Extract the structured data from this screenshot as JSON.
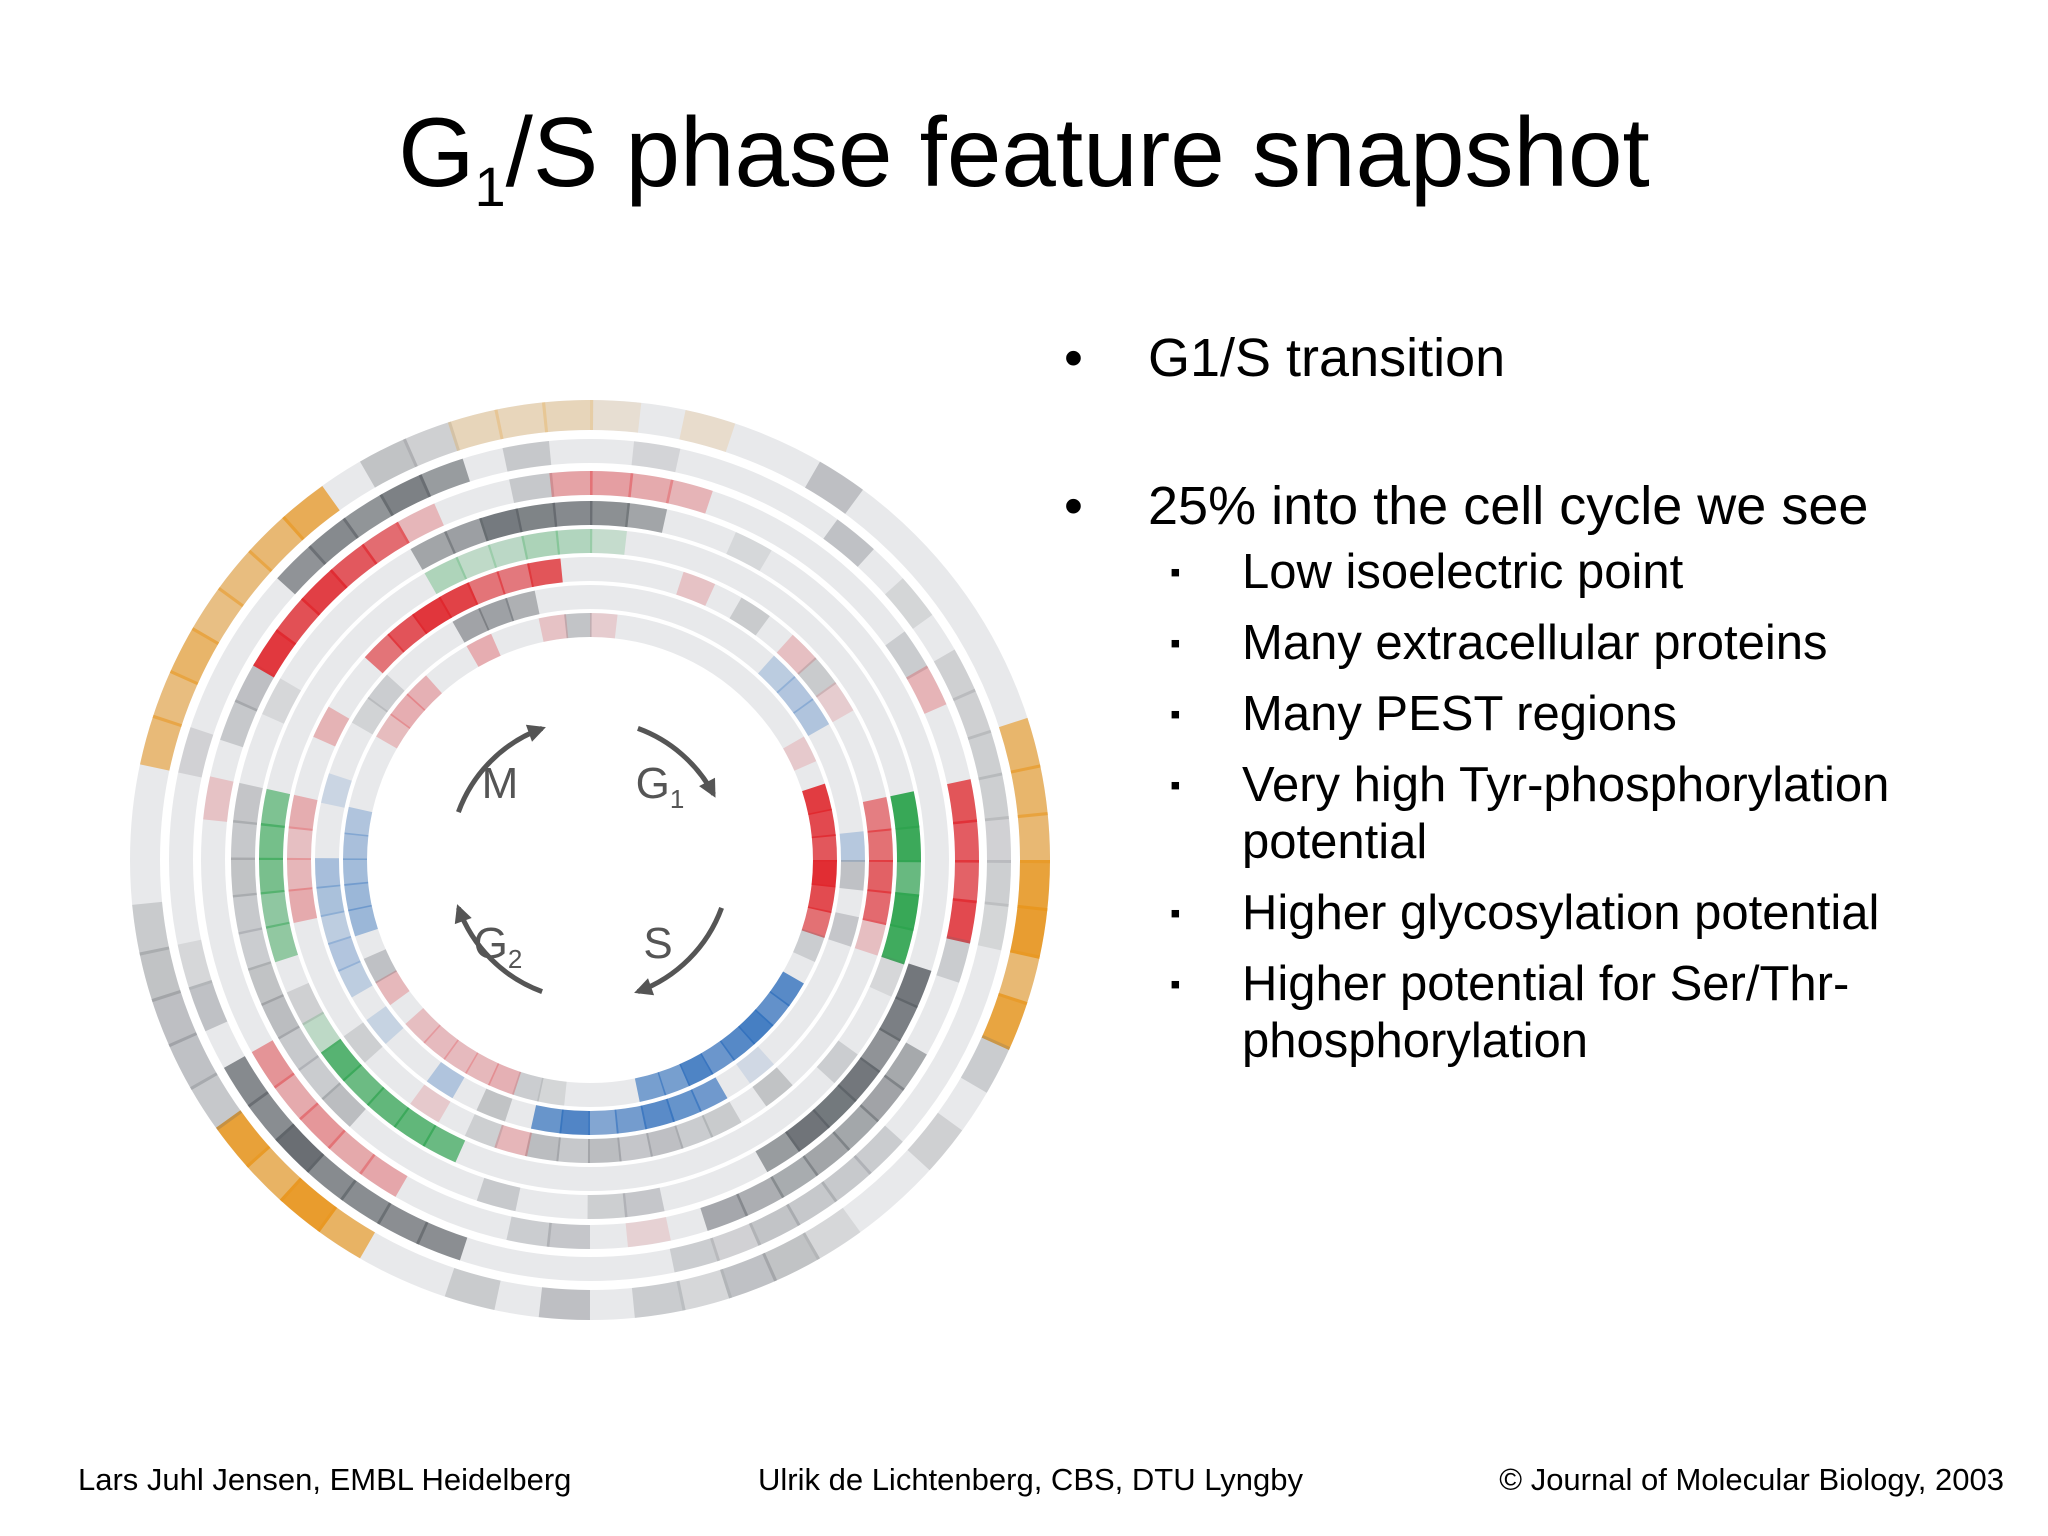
{
  "title": {
    "main": "G",
    "sub": "1",
    "rest": "/S phase feature snapshot"
  },
  "bullets": {
    "b1": "G1/S transition",
    "b2": "25% into the cell cycle we see",
    "sub_items": [
      "Low isoelectric point",
      "Many extracellular proteins",
      "Many PEST regions",
      "Very high Tyr-phosphorylation potential",
      "Higher glycosylation potential",
      "Higher potential for Ser/Thr-phosphorylation"
    ]
  },
  "diagram": {
    "phases": {
      "m": "M",
      "g1": "G",
      "g1_sub": "1",
      "s": "S",
      "g2": "G",
      "g2_sub": "2"
    },
    "palette": {
      "gray": "#5c6166",
      "red": "#e0262c",
      "green": "#2ea44f",
      "blue": "#2f6fbd",
      "orange": "#e8961e",
      "track": "#e8e9eb",
      "arrow": "#555555"
    }
  },
  "footer": {
    "left": "Lars Juhl Jensen, EMBL Heidelberg",
    "center": "Ulrik de Lichtenberg, CBS, DTU Lyngby",
    "right": "© Journal of Molecular Biology, 2003"
  }
}
